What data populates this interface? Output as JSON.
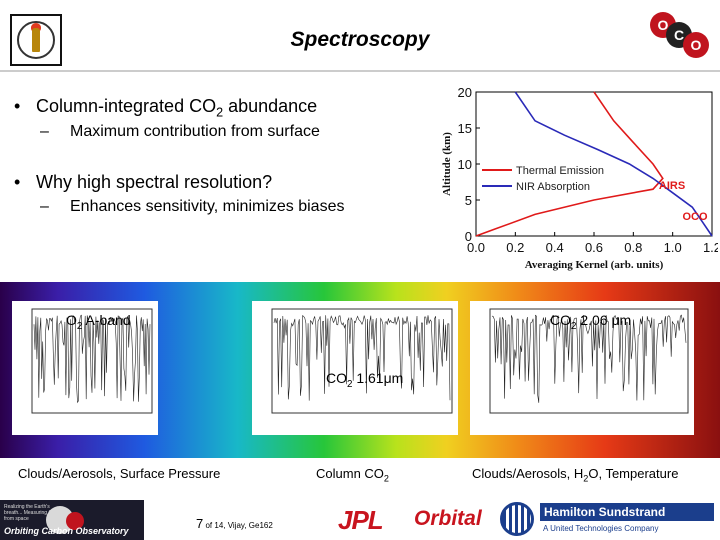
{
  "slide": {
    "title": "Spectroscopy",
    "bullets": [
      {
        "text": "Column-integrated CO",
        "sub_text": "2",
        "text_after": " abundance"
      },
      {
        "text": "Why high spectral resolution?"
      }
    ],
    "sub_bullets": [
      "Maximum contribution from surface",
      "Enhances sensitivity, minimizes biases"
    ],
    "molecule": {
      "atoms": [
        "O",
        "C",
        "O"
      ]
    },
    "footer": {
      "page": "7",
      "of_text": "of 14,",
      "author": "Vijay, Ge162",
      "oco_name": "Orbiting Carbon Observatory",
      "oco_small_text": "Realizing the Earth's breath... Measuring CO2 from space",
      "jpl": "JPL",
      "orbital": "Orbital",
      "hs_name": "Hamilton Sundstrand",
      "hs_sub": "A United Technologies Company"
    }
  },
  "kernel_chart": {
    "type": "line",
    "ylabel": "Altitude (km)",
    "xlabel": "Averaging Kernel (arb. units)",
    "xlim": [
      0.0,
      1.2
    ],
    "ylim": [
      0,
      20
    ],
    "xticks": [
      "0.0",
      "0.2",
      "0.4",
      "0.6",
      "0.8",
      "1.0",
      "1.2"
    ],
    "yticks": [
      "0",
      "5",
      "10",
      "15",
      "20"
    ],
    "series": [
      {
        "name": "Thermal Emission",
        "tag": "AIRS",
        "color": "#e01a1a",
        "x": [
          0.0,
          0.1,
          0.3,
          0.6,
          0.9,
          0.95,
          0.9,
          0.8,
          0.7,
          0.6
        ],
        "y": [
          0,
          1,
          3,
          5,
          6.5,
          8,
          10,
          13,
          16,
          20
        ]
      },
      {
        "name": "NIR Absorption",
        "tag": "OCO",
        "color": "#2a2ab8",
        "x": [
          1.2,
          1.15,
          1.1,
          1.0,
          0.9,
          0.78,
          0.62,
          0.45,
          0.3,
          0.2
        ],
        "y": [
          0,
          2,
          4,
          6,
          8,
          10,
          12,
          14,
          16,
          20
        ]
      }
    ]
  },
  "spectra": {
    "bands": [
      {
        "label_pre": "O",
        "label_sub": "2",
        "label_post": " A-band"
      },
      {
        "label_pre": "CO",
        "label_sub": "2",
        "label_post": " 1.61μm"
      },
      {
        "label_pre": "CO",
        "label_sub": "2",
        "label_post": " 2.06 μm"
      }
    ],
    "captions": [
      {
        "pre": "Clouds/Aerosols, Surface Pressure",
        "sub": "",
        "post": ""
      },
      {
        "pre": "Column CO",
        "sub": "2",
        "post": ""
      },
      {
        "pre": "Clouds/Aerosols, H",
        "sub": "2",
        "post": "O, Temperature"
      }
    ]
  }
}
